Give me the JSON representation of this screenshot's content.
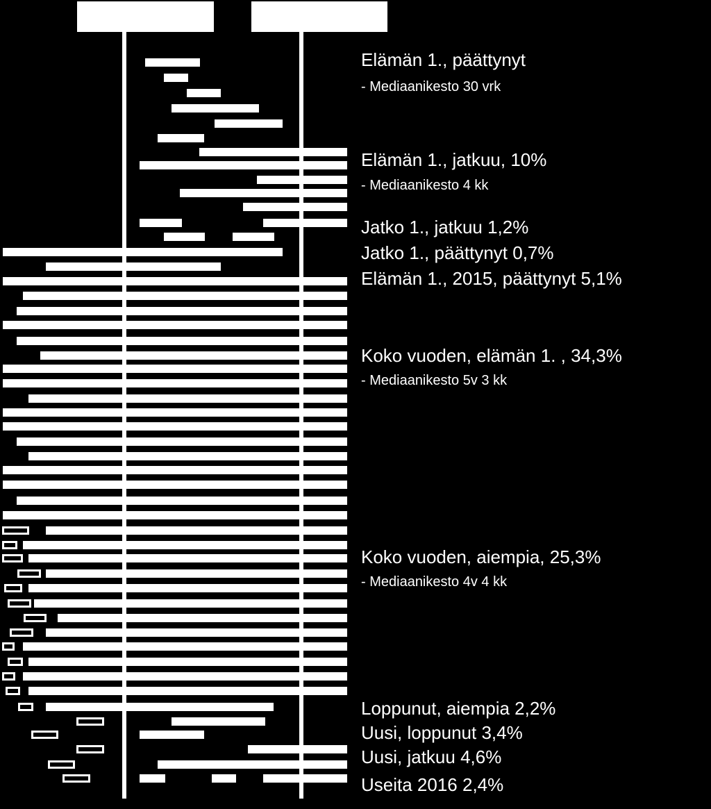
{
  "colors": {
    "background": "#000000",
    "foreground": "#ffffff"
  },
  "header_boxes": [
    "",
    ""
  ],
  "labels": {
    "group1_title": "Elämän 1., päättynyt",
    "group1_median": "- Mediaanikesto 30 vrk",
    "group2_title": "Elämän 1., jatkuu, 10%",
    "group2_median": "- Mediaanikesto 4 kk",
    "group3_title": "Jatko 1., jatkuu 1,2%",
    "group4_title": "Jatko 1., päättynyt 0,7%",
    "group5_title": "Elämän 1., 2015,  päättynyt  5,1%",
    "group6_title": "Koko vuoden, elämän 1. , 34,3%",
    "group6_median": "- Mediaanikesto 5v 3 kk",
    "group7_title": "Koko vuoden, aiempia, 25,3%",
    "group7_median": "- Mediaanikesto 4v 4 kk",
    "group8_title": "Loppunut, aiempia 2,2%",
    "group9_title": "Uusi, loppunut  3,4%",
    "group10_title": "Uusi, jatkuu 4,6%",
    "group11_title": "Useita 2016 2,4%"
  }
}
